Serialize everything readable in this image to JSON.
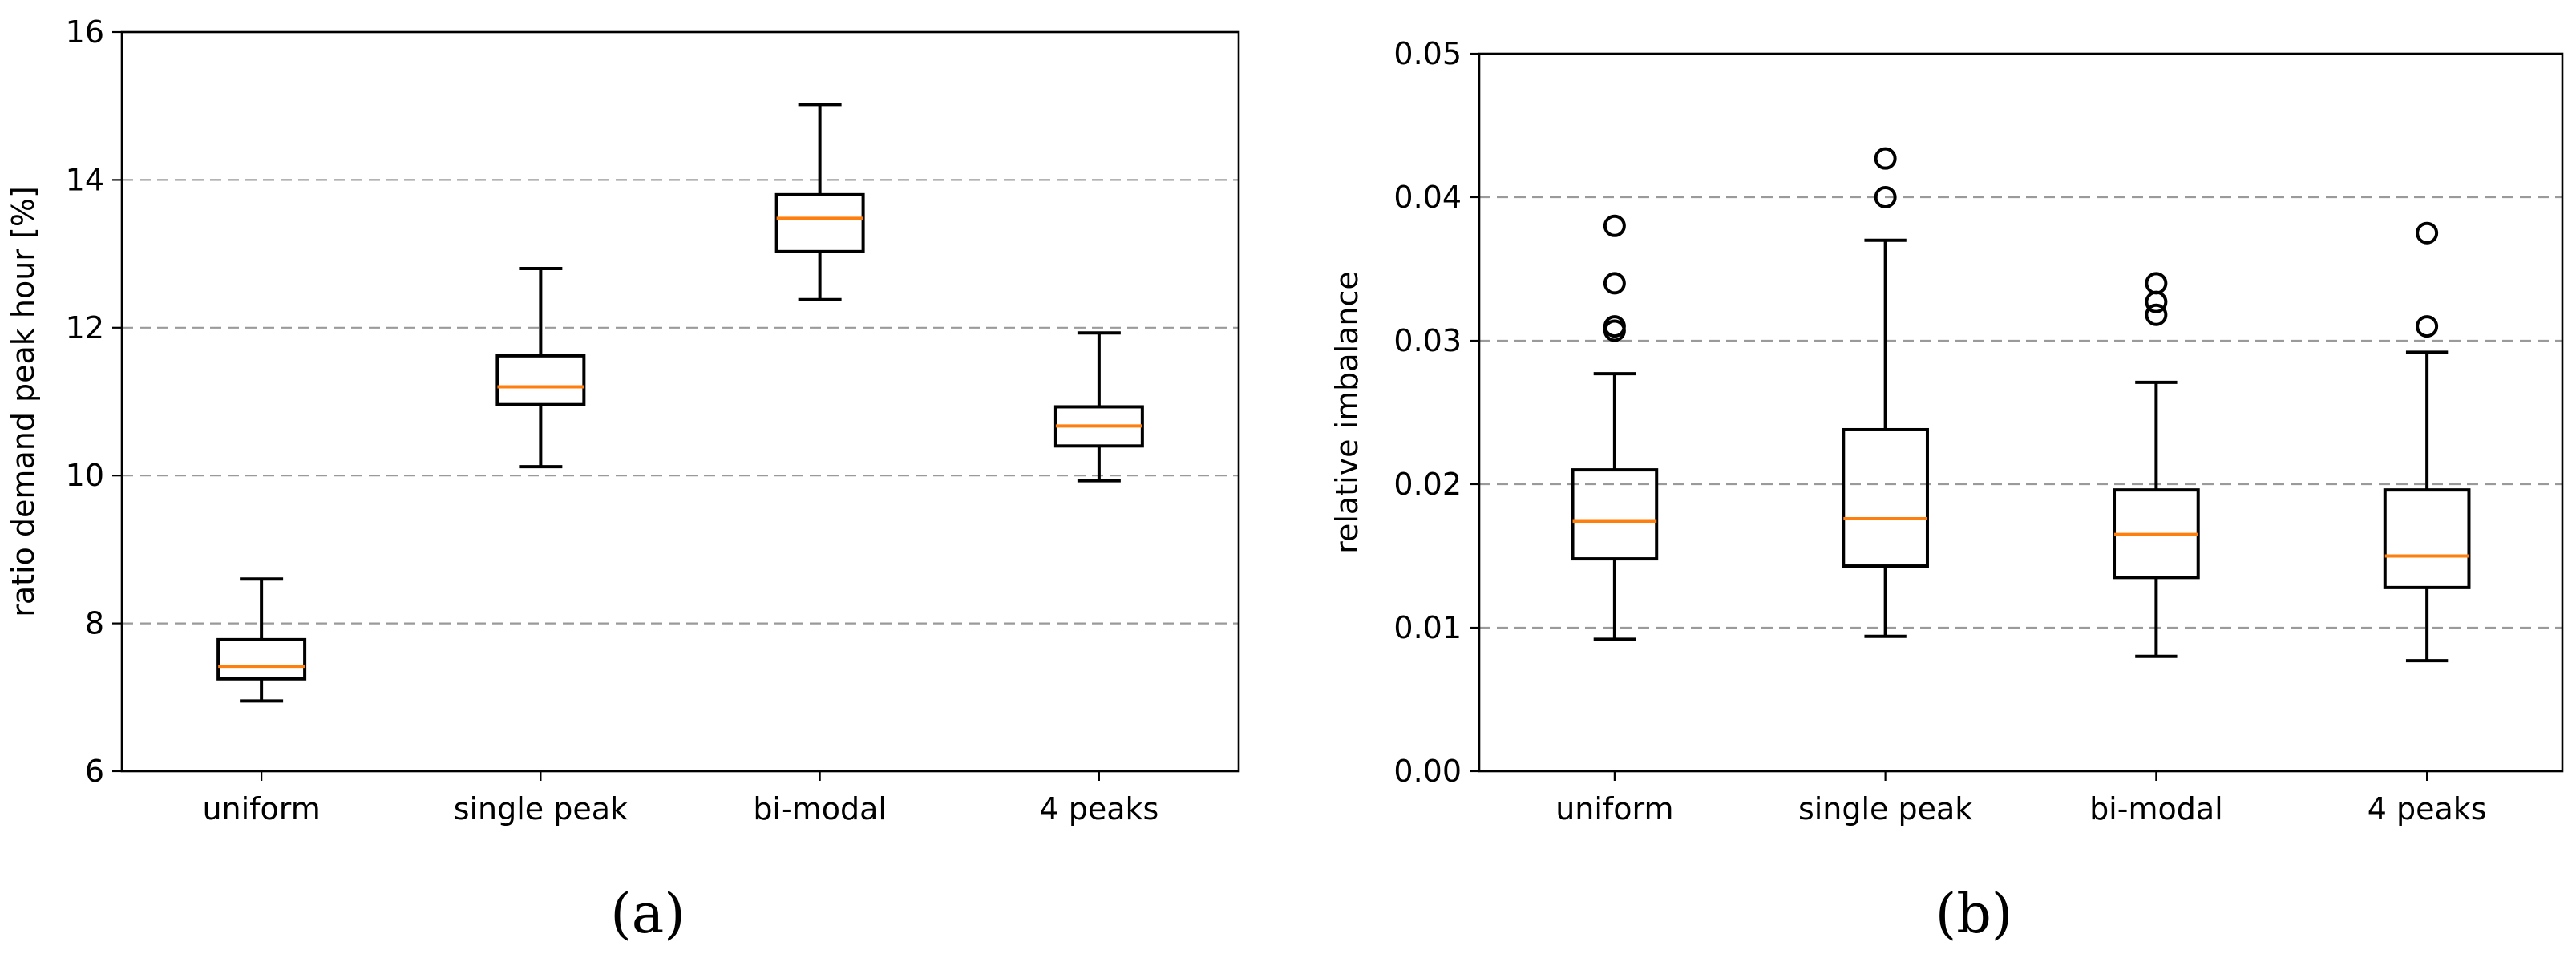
{
  "chart_data": [
    {
      "type": "box",
      "panel_label": "(a)",
      "categories": [
        "uniform",
        "single peak",
        "bi-modal",
        "4 peaks"
      ],
      "xlabel": "",
      "ylabel": "ratio demand peak hour [%]",
      "ylim": [
        6,
        16
      ],
      "yticks": [
        6,
        8,
        10,
        12,
        14,
        16
      ],
      "ytick_labels": [
        "6",
        "8",
        "10",
        "12",
        "14",
        "16"
      ],
      "grid": "horizontal-dashed",
      "boxes": [
        {
          "whisker_low": 6.95,
          "q1": 7.25,
          "median": 7.42,
          "q3": 7.78,
          "whisker_high": 8.6,
          "outliers": []
        },
        {
          "whisker_low": 10.12,
          "q1": 10.96,
          "median": 11.2,
          "q3": 11.62,
          "whisker_high": 12.8,
          "outliers": []
        },
        {
          "whisker_low": 12.38,
          "q1": 13.03,
          "median": 13.48,
          "q3": 13.8,
          "whisker_high": 15.02,
          "outliers": []
        },
        {
          "whisker_low": 9.93,
          "q1": 10.4,
          "median": 10.67,
          "q3": 10.93,
          "whisker_high": 11.93,
          "outliers": []
        }
      ]
    },
    {
      "type": "box",
      "panel_label": "(b)",
      "categories": [
        "uniform",
        "single peak",
        "bi-modal",
        "4 peaks"
      ],
      "xlabel": "",
      "ylabel": "relative imbalance",
      "ylim": [
        0.0,
        0.05
      ],
      "yticks": [
        0.0,
        0.01,
        0.02,
        0.03,
        0.04,
        0.05
      ],
      "ytick_labels": [
        "0.00",
        "0.01",
        "0.02",
        "0.03",
        "0.04",
        "0.05"
      ],
      "grid": "horizontal-dashed",
      "boxes": [
        {
          "whisker_low": 0.0092,
          "q1": 0.0148,
          "median": 0.0174,
          "q3": 0.021,
          "whisker_high": 0.0277,
          "outliers": [
            0.038,
            0.034,
            0.031,
            0.0307
          ]
        },
        {
          "whisker_low": 0.0094,
          "q1": 0.0143,
          "median": 0.0176,
          "q3": 0.0238,
          "whisker_high": 0.037,
          "outliers": [
            0.0427,
            0.04
          ]
        },
        {
          "whisker_low": 0.008,
          "q1": 0.0135,
          "median": 0.0165,
          "q3": 0.0196,
          "whisker_high": 0.0271,
          "outliers": [
            0.034,
            0.0327,
            0.0318
          ]
        },
        {
          "whisker_low": 0.0077,
          "q1": 0.0128,
          "median": 0.015,
          "q3": 0.0196,
          "whisker_high": 0.0292,
          "outliers": [
            0.0375,
            0.031
          ]
        }
      ]
    }
  ]
}
